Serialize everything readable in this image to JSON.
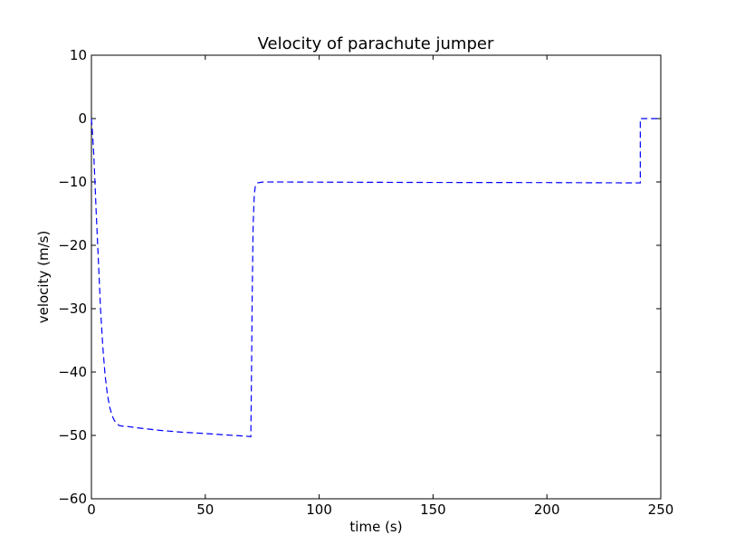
{
  "chart_data": {
    "type": "line",
    "title": "Velocity of parachute jumper",
    "xlabel": "time (s)",
    "ylabel": "velocity (m/s)",
    "xlim": [
      0,
      250
    ],
    "ylim": [
      -60,
      10
    ],
    "xticks": [
      0,
      50,
      100,
      150,
      200,
      250
    ],
    "yticks": [
      -60,
      -50,
      -40,
      -30,
      -20,
      -10,
      0,
      10
    ],
    "xtick_labels": [
      "0",
      "50",
      "100",
      "150",
      "200",
      "250"
    ],
    "ytick_labels": [
      "−60",
      "−50",
      "−40",
      "−30",
      "−20",
      "−10",
      "0",
      "10"
    ],
    "grid": false,
    "series": [
      {
        "line_style": "dashed",
        "color": "#0000ff",
        "x": [
          0,
          0.5,
          1,
          1.5,
          2,
          3,
          4,
          5,
          6,
          7,
          8,
          9,
          10,
          11,
          12,
          13,
          14,
          16,
          18,
          20,
          25,
          30,
          40,
          50,
          60,
          65,
          69,
          70,
          70.3,
          70.6,
          71,
          71.5,
          72,
          73,
          75,
          80,
          90,
          100,
          120,
          150,
          200,
          241,
          241,
          242,
          250
        ],
        "y": [
          0,
          -2.5,
          -5.5,
          -9.5,
          -14,
          -22,
          -30,
          -36,
          -40.5,
          -43.5,
          -45.5,
          -46.8,
          -47.6,
          -48.1,
          -48.4,
          -48.5,
          -48.55,
          -48.6,
          -48.7,
          -48.8,
          -49,
          -49.2,
          -49.5,
          -49.7,
          -49.95,
          -50.05,
          -50.15,
          -50.2,
          -40,
          -28,
          -17,
          -12,
          -10.6,
          -10.15,
          -10.02,
          -10.0,
          -10.02,
          -10.03,
          -10.05,
          -10.08,
          -10.1,
          -10.15,
          0,
          0,
          0
        ]
      }
    ]
  }
}
